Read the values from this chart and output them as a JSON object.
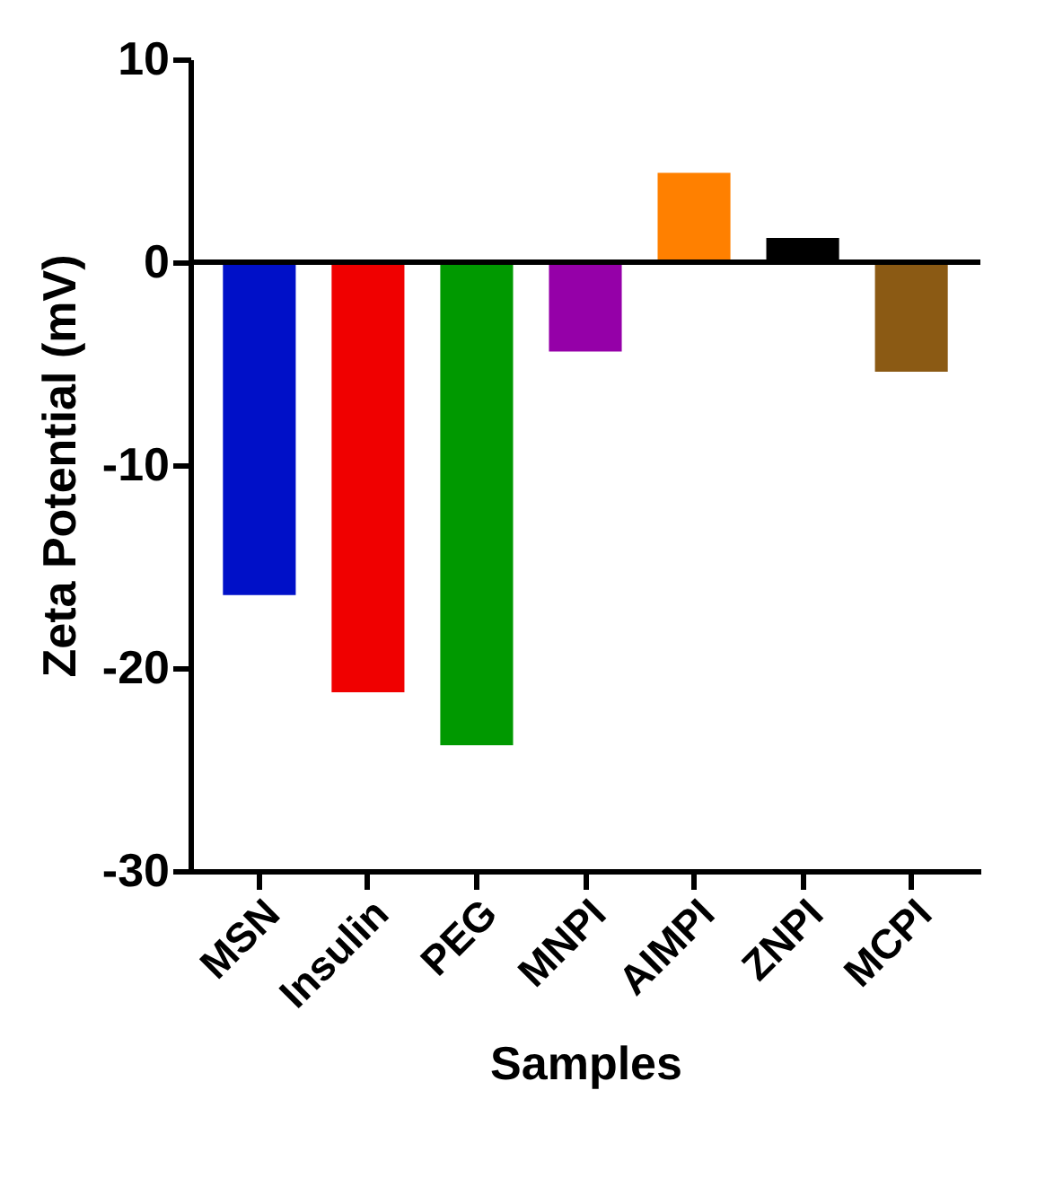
{
  "chart_data": {
    "type": "bar",
    "xlabel": "Samples",
    "ylabel": "Zeta Potential (mV)",
    "categories": [
      "MSN",
      "Insulin",
      "PEG",
      "MNPI",
      "AIMPI",
      "ZNPI",
      "MCPI"
    ],
    "values": [
      -16.4,
      -21.2,
      -23.8,
      -4.4,
      4.4,
      1.2,
      -5.4
    ],
    "colors": [
      "#0010c8",
      "#f00000",
      "#009900",
      "#9500a8",
      "#ff8000",
      "#000000",
      "#8b5a14"
    ],
    "ylim": [
      -30,
      10
    ],
    "yticks": [
      -30,
      -20,
      -10,
      0,
      10
    ],
    "grid": false,
    "ref_lines": [
      {
        "axis": "y",
        "value": 0,
        "color": "#000000"
      }
    ]
  }
}
